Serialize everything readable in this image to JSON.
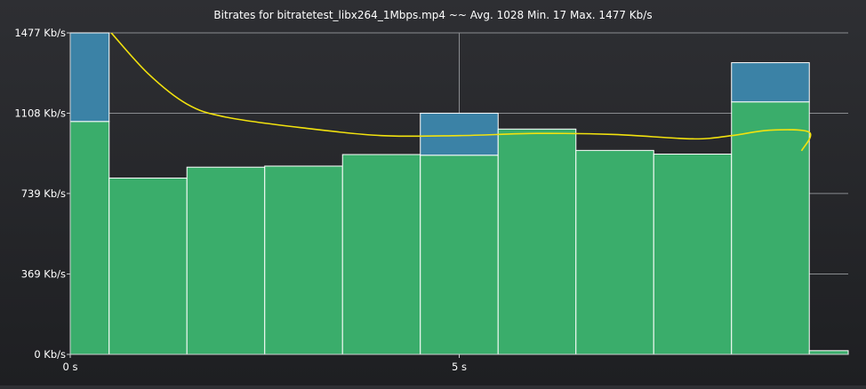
{
  "chart_data": {
    "type": "bar",
    "title": "Bitrates for bitratetest_libx264_1Mbps.mp4 ~~ Avg. 1028 Min. 17 Max. 1477 Kb/s",
    "xlabel": "",
    "ylabel": "",
    "x_unit": "s",
    "y_unit": "Kb/s",
    "xlim": [
      0,
      10
    ],
    "ylim": [
      0,
      1477
    ],
    "y_ticks": [
      {
        "value": 0,
        "label": "0 Kb/s"
      },
      {
        "value": 369,
        "label": "369 Kb/s"
      },
      {
        "value": 739,
        "label": "739 Kb/s"
      },
      {
        "value": 1108,
        "label": "1108 Kb/s"
      },
      {
        "value": 1477,
        "label": "1477 Kb/s"
      }
    ],
    "x_ticks": [
      {
        "value": 0,
        "label": "0 s"
      },
      {
        "value": 5,
        "label": "5 s"
      }
    ],
    "grid": true,
    "colors": {
      "frame_bar": "#3aad6b",
      "keyframe_bar": "#3b82a6",
      "bar_edge": "#ffffff",
      "average_line": "#f2e20e",
      "gridline": "#8a8c90",
      "tick_text": "#ffffff"
    },
    "bars": [
      {
        "start": 0.0,
        "end": 0.5,
        "frames": 1070,
        "keyframes": 407
      },
      {
        "start": 0.5,
        "end": 1.5,
        "frames": 810,
        "keyframes": 0
      },
      {
        "start": 1.5,
        "end": 2.5,
        "frames": 860,
        "keyframes": 0
      },
      {
        "start": 2.5,
        "end": 3.5,
        "frames": 865,
        "keyframes": 0
      },
      {
        "start": 3.5,
        "end": 4.5,
        "frames": 918,
        "keyframes": 0
      },
      {
        "start": 4.5,
        "end": 5.5,
        "frames": 915,
        "keyframes": 193
      },
      {
        "start": 5.5,
        "end": 6.5,
        "frames": 1035,
        "keyframes": 0
      },
      {
        "start": 6.5,
        "end": 7.5,
        "frames": 937,
        "keyframes": 0
      },
      {
        "start": 7.5,
        "end": 8.5,
        "frames": 920,
        "keyframes": 0
      },
      {
        "start": 8.5,
        "end": 9.5,
        "frames": 1160,
        "keyframes": 180
      },
      {
        "start": 9.5,
        "end": 10.0,
        "frames": 17,
        "keyframes": 0
      }
    ],
    "average_curve": [
      {
        "x": 0.52,
        "y": 1480
      },
      {
        "x": 1.0,
        "y": 1290
      },
      {
        "x": 1.5,
        "y": 1150
      },
      {
        "x": 2.0,
        "y": 1090
      },
      {
        "x": 3.0,
        "y": 1040
      },
      {
        "x": 4.0,
        "y": 1005
      },
      {
        "x": 5.0,
        "y": 1005
      },
      {
        "x": 6.0,
        "y": 1015
      },
      {
        "x": 7.0,
        "y": 1010
      },
      {
        "x": 8.0,
        "y": 990
      },
      {
        "x": 8.5,
        "y": 1005
      },
      {
        "x": 9.0,
        "y": 1030
      },
      {
        "x": 9.5,
        "y": 1020
      },
      {
        "x": 9.4,
        "y": 935
      }
    ]
  }
}
